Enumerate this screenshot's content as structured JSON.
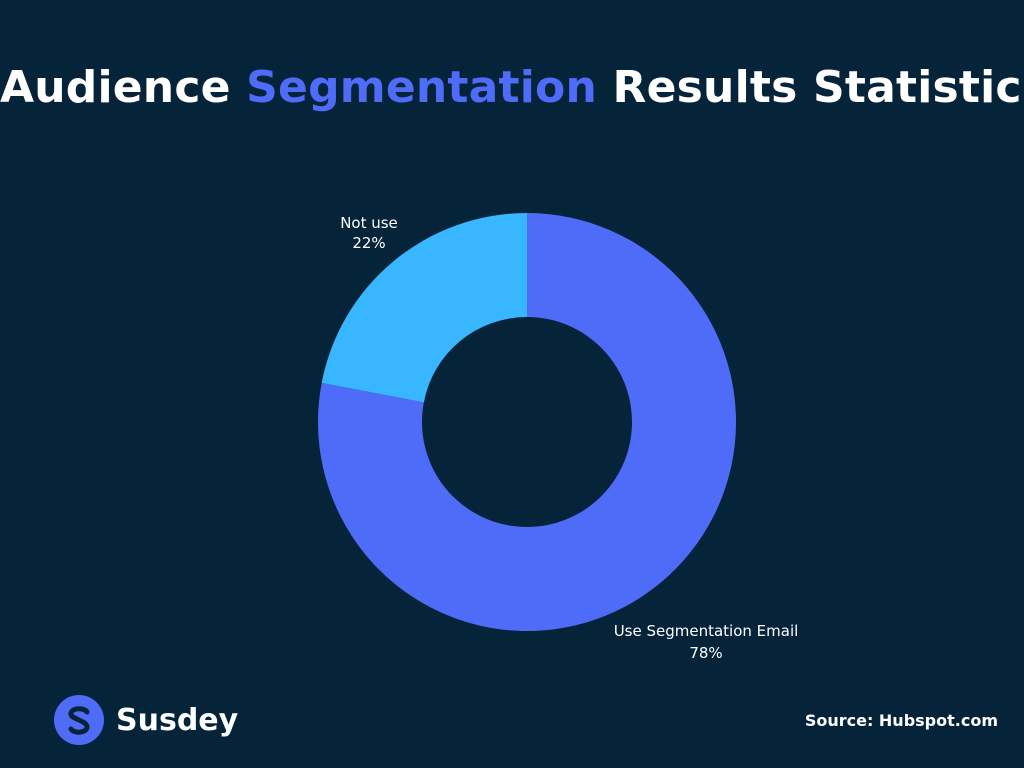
{
  "header": {
    "title_part1": "Audience ",
    "title_accent": "Segmentation",
    "title_part2": " Results Statistics"
  },
  "colors": {
    "background": "#05243a",
    "accent": "#4f6cf9",
    "slice_primary": "#4f6cf9",
    "slice_secondary": "#38b6ff"
  },
  "chart_data": {
    "type": "pie",
    "donut": true,
    "title": "Audience Segmentation Results Statistics",
    "slices": [
      {
        "label": "Use Segmentation Email",
        "value": 78,
        "display": "78%",
        "color": "#4f6cf9"
      },
      {
        "label": "Not use",
        "value": 22,
        "display": "22%",
        "color": "#38b6ff"
      }
    ]
  },
  "footer": {
    "brand": "Susdey",
    "logo_icon": "s-logo-icon",
    "source": "Source: Hubspot.com"
  }
}
